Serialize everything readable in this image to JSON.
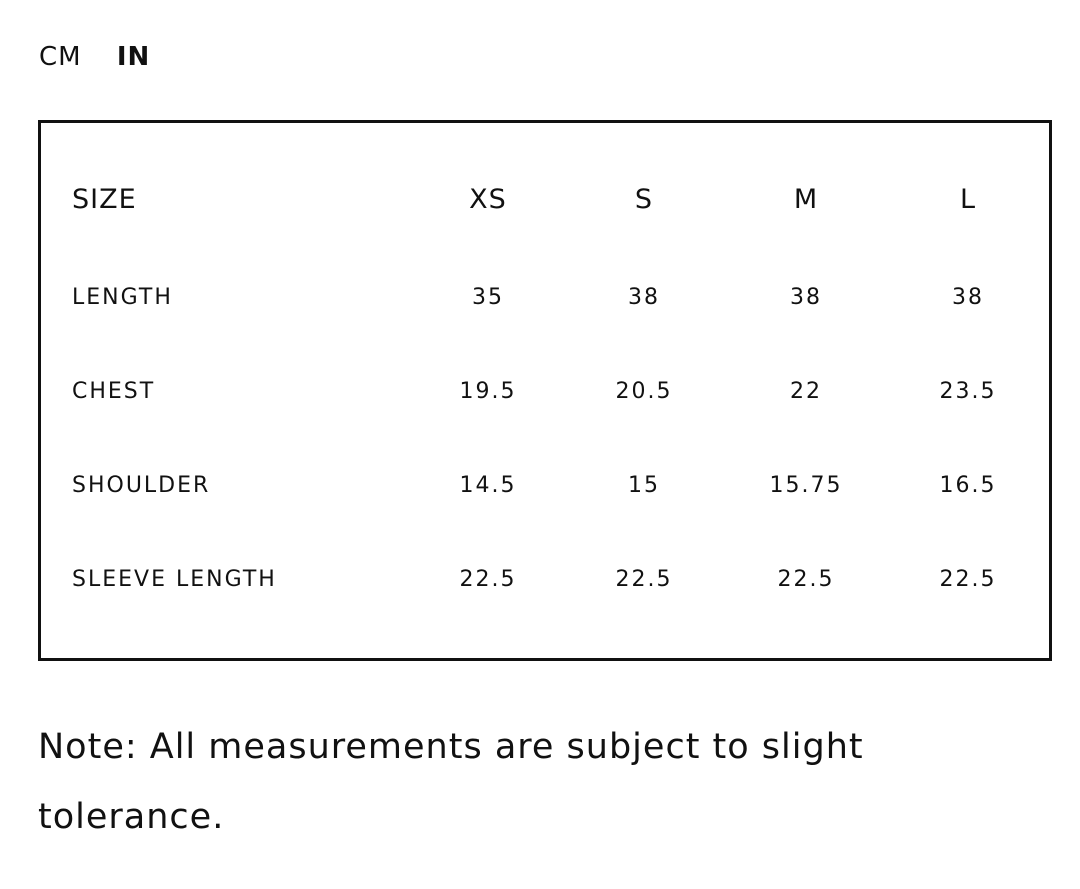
{
  "units": {
    "options": [
      "CM",
      "IN"
    ],
    "selected": "IN"
  },
  "table": {
    "header": [
      "SIZE",
      "XS",
      "S",
      "M",
      "L"
    ],
    "rows": [
      [
        "LENGTH",
        "35",
        "38",
        "38",
        "38"
      ],
      [
        "CHEST",
        "19.5",
        "20.5",
        "22",
        "23.5"
      ],
      [
        "SHOULDER",
        "14.5",
        "15",
        "15.75",
        "16.5"
      ],
      [
        "SLEEVE LENGTH",
        "22.5",
        "22.5",
        "22.5",
        "22.5"
      ]
    ]
  },
  "note": "Note: All measurements are subject to slight tolerance."
}
